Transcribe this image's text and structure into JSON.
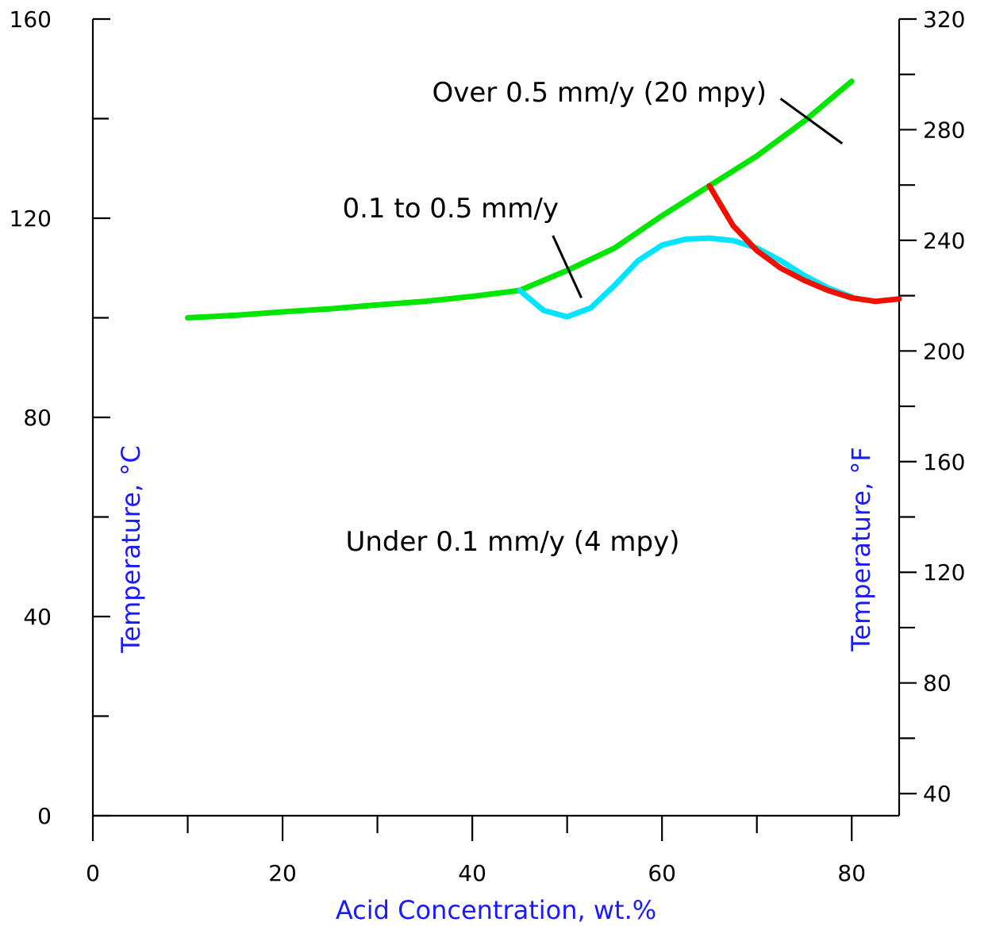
{
  "chart_data": {
    "type": "line",
    "title": "",
    "xlabel": "Acid Concentration, wt.%",
    "ylabel": "Temperature, °C",
    "y2label": "Temperature, °F",
    "xlim": [
      0,
      85
    ],
    "ylim": [
      0,
      160
    ],
    "y2lim": [
      32,
      320
    ],
    "x_ticks": [
      0,
      20,
      40,
      60,
      80
    ],
    "x_minor_ticks": [
      10,
      30,
      50,
      70
    ],
    "y_ticks": [
      0,
      40,
      80,
      120,
      160
    ],
    "y_minor_ticks": [
      20,
      60,
      100,
      140
    ],
    "y2_ticks": [
      40,
      80,
      120,
      160,
      200,
      240,
      280,
      320
    ],
    "y2_minor_ticks": [
      60,
      100,
      140,
      180,
      220,
      260,
      300
    ],
    "grid": false,
    "series": [
      {
        "color": "#00e600",
        "x": [
          10,
          15,
          20,
          25,
          30,
          35,
          40,
          45,
          50,
          55,
          60,
          65,
          70,
          75,
          80
        ],
        "y": [
          100,
          100.5,
          101.2,
          101.8,
          102.6,
          103.3,
          104.3,
          105.5,
          109.5,
          114,
          120.5,
          126.5,
          132.5,
          139.5,
          147.5
        ]
      },
      {
        "color": "#00e5ff",
        "x": [
          45,
          47.5,
          50,
          52.5,
          55,
          57.5,
          60,
          62.5,
          65,
          67.5,
          70,
          72.5,
          75,
          77.5,
          80
        ],
        "y": [
          105.5,
          101.5,
          100.2,
          102,
          106.5,
          111.5,
          114.6,
          115.8,
          116,
          115.5,
          114,
          111.5,
          108.5,
          106,
          104.2
        ]
      },
      {
        "color": "#ee1100",
        "x": [
          65,
          67.5,
          70,
          72.5,
          75,
          77.5,
          80,
          82.5,
          85
        ],
        "y": [
          126.5,
          118.5,
          113.5,
          110,
          107.5,
          105.5,
          104,
          103.3,
          103.8
        ]
      }
    ],
    "annotations": [
      {
        "text": "Over 0.5 mm/y (20 mpy)",
        "leader": {
          "x": [
            72.5,
            79
          ],
          "y": [
            144,
            135
          ]
        }
      },
      {
        "text": "0.1 to 0.5 mm/y",
        "leader": {
          "x": [
            48.5,
            51.5
          ],
          "y": [
            116.5,
            104
          ]
        }
      },
      {
        "text": "Under 0.1 mm/y (4 mpy)"
      }
    ]
  }
}
